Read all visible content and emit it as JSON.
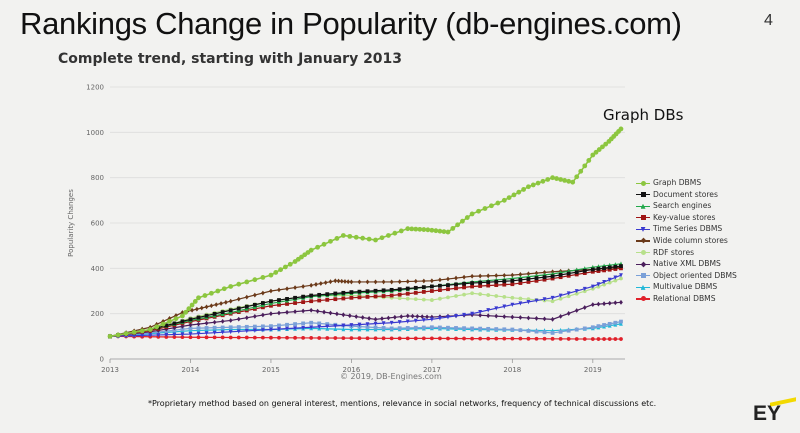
{
  "slide": {
    "title": "Rankings Change in Popularity (db-engines.com)",
    "page_number": "4",
    "subtitle": "Complete trend, starting with January 2013",
    "annotation": "Graph DBs",
    "copyright": "© 2019, DB-Engines.com",
    "footnote": "*Proprietary method based on general interest, mentions, relevance in social networks, frequency of technical discussions etc.",
    "logo_text": "EY",
    "logo_color": "#f3d900"
  },
  "chart_data": {
    "type": "line",
    "title": "Complete trend, starting with January 2013",
    "xlabel": "",
    "ylabel": "Popularity Changes",
    "xlim": [
      2013.0,
      2019.4
    ],
    "ylim": [
      0,
      1200
    ],
    "x_ticks": [
      "2013",
      "2014",
      "2015",
      "2016",
      "2017",
      "2018",
      "2019"
    ],
    "y_ticks": [
      "0",
      "200",
      "400",
      "600",
      "800",
      "1000",
      "1200"
    ],
    "grid": true,
    "legend_position": "right",
    "series": [
      {
        "name": "Graph DBMS",
        "color": "#8cc63f",
        "marker": "circle",
        "x": [
          2013.0,
          2013.5,
          2013.9,
          2014.1,
          2014.5,
          2015.0,
          2015.3,
          2015.5,
          2015.9,
          2016.3,
          2016.7,
          2016.95,
          2017.2,
          2017.5,
          2017.9,
          2018.2,
          2018.5,
          2018.75,
          2019.0,
          2019.2,
          2019.35
        ],
        "y": [
          100,
          130,
          190,
          270,
          320,
          370,
          430,
          480,
          545,
          525,
          575,
          570,
          560,
          640,
          700,
          760,
          800,
          780,
          900,
          960,
          1015
        ]
      },
      {
        "name": "Document stores",
        "color": "#111111",
        "marker": "square",
        "x": [
          2013.0,
          2013.5,
          2014.0,
          2014.5,
          2015.0,
          2015.5,
          2016.0,
          2016.5,
          2017.0,
          2017.5,
          2018.0,
          2018.5,
          2019.0,
          2019.35
        ],
        "y": [
          100,
          130,
          175,
          215,
          255,
          280,
          295,
          305,
          320,
          335,
          345,
          365,
          395,
          410
        ]
      },
      {
        "name": "Search engines",
        "color": "#22a84a",
        "marker": "triangle",
        "x": [
          2013.0,
          2013.5,
          2014.0,
          2014.5,
          2015.0,
          2015.5,
          2016.0,
          2016.5,
          2017.0,
          2017.5,
          2018.0,
          2018.5,
          2019.0,
          2019.35
        ],
        "y": [
          100,
          130,
          170,
          205,
          245,
          275,
          290,
          300,
          320,
          340,
          355,
          375,
          405,
          420
        ]
      },
      {
        "name": "Key-value stores",
        "color": "#a01515",
        "marker": "square",
        "x": [
          2013.0,
          2013.5,
          2014.0,
          2014.5,
          2015.0,
          2015.5,
          2016.0,
          2016.5,
          2017.0,
          2017.5,
          2018.0,
          2018.5,
          2019.0,
          2019.35
        ],
        "y": [
          100,
          125,
          165,
          200,
          235,
          255,
          270,
          280,
          300,
          320,
          330,
          355,
          385,
          400
        ]
      },
      {
        "name": "Time Series DBMS",
        "color": "#3a3ad0",
        "marker": "triangle-down",
        "x": [
          2013.0,
          2013.5,
          2014.0,
          2014.5,
          2015.0,
          2015.5,
          2016.0,
          2016.5,
          2017.0,
          2017.5,
          2018.0,
          2018.5,
          2019.0,
          2019.35
        ],
        "y": [
          100,
          105,
          110,
          120,
          130,
          140,
          150,
          160,
          175,
          200,
          240,
          270,
          320,
          370
        ]
      },
      {
        "name": "Wide column stores",
        "color": "#6b3a1a",
        "marker": "diamond",
        "x": [
          2013.0,
          2013.5,
          2013.9,
          2014.2,
          2014.5,
          2015.0,
          2015.5,
          2015.8,
          2016.0,
          2016.5,
          2017.0,
          2017.5,
          2018.0,
          2018.5,
          2019.0,
          2019.35
        ],
        "y": [
          100,
          140,
          205,
          230,
          255,
          300,
          325,
          345,
          340,
          340,
          345,
          365,
          370,
          385,
          395,
          405
        ]
      },
      {
        "name": "RDF stores",
        "color": "#b7e08a",
        "marker": "circle",
        "x": [
          2013.0,
          2013.5,
          2014.0,
          2014.5,
          2015.0,
          2015.5,
          2016.0,
          2016.5,
          2017.0,
          2017.5,
          2018.0,
          2018.5,
          2019.0,
          2019.35
        ],
        "y": [
          100,
          125,
          180,
          220,
          255,
          280,
          280,
          270,
          260,
          290,
          270,
          255,
          310,
          355
        ]
      },
      {
        "name": "Native XML DBMS",
        "color": "#4b1f5c",
        "marker": "diamond",
        "x": [
          2013.0,
          2013.5,
          2014.0,
          2014.5,
          2015.0,
          2015.5,
          2015.9,
          2016.3,
          2016.7,
          2017.0,
          2017.5,
          2018.0,
          2018.5,
          2019.0,
          2019.35
        ],
        "y": [
          100,
          120,
          150,
          170,
          200,
          215,
          195,
          175,
          190,
          185,
          195,
          185,
          175,
          240,
          250
        ]
      },
      {
        "name": "Object oriented DBMS",
        "color": "#7aa0d8",
        "marker": "square",
        "x": [
          2013.0,
          2013.5,
          2014.0,
          2014.5,
          2015.0,
          2015.5,
          2016.0,
          2016.5,
          2017.0,
          2017.5,
          2018.0,
          2018.5,
          2019.0,
          2019.35
        ],
        "y": [
          100,
          115,
          135,
          140,
          145,
          160,
          145,
          135,
          140,
          135,
          130,
          115,
          140,
          165
        ]
      },
      {
        "name": "Multivalue DBMS",
        "color": "#22b8d8",
        "marker": "triangle",
        "x": [
          2013.0,
          2013.5,
          2014.0,
          2014.5,
          2015.0,
          2015.5,
          2016.0,
          2016.5,
          2017.0,
          2017.5,
          2018.0,
          2018.5,
          2019.0,
          2019.35
        ],
        "y": [
          100,
          112,
          125,
          130,
          130,
          135,
          130,
          130,
          135,
          130,
          128,
          125,
          135,
          155
        ]
      },
      {
        "name": "Relational DBMS",
        "color": "#e0202a",
        "marker": "circle",
        "x": [
          2013.0,
          2013.5,
          2014.0,
          2014.5,
          2015.0,
          2015.5,
          2016.0,
          2016.5,
          2017.0,
          2017.5,
          2018.0,
          2018.5,
          2019.0,
          2019.35
        ],
        "y": [
          100,
          98,
          96,
          95,
          94,
          93,
          92,
          91,
          91,
          90,
          90,
          89,
          88,
          88
        ]
      }
    ]
  }
}
